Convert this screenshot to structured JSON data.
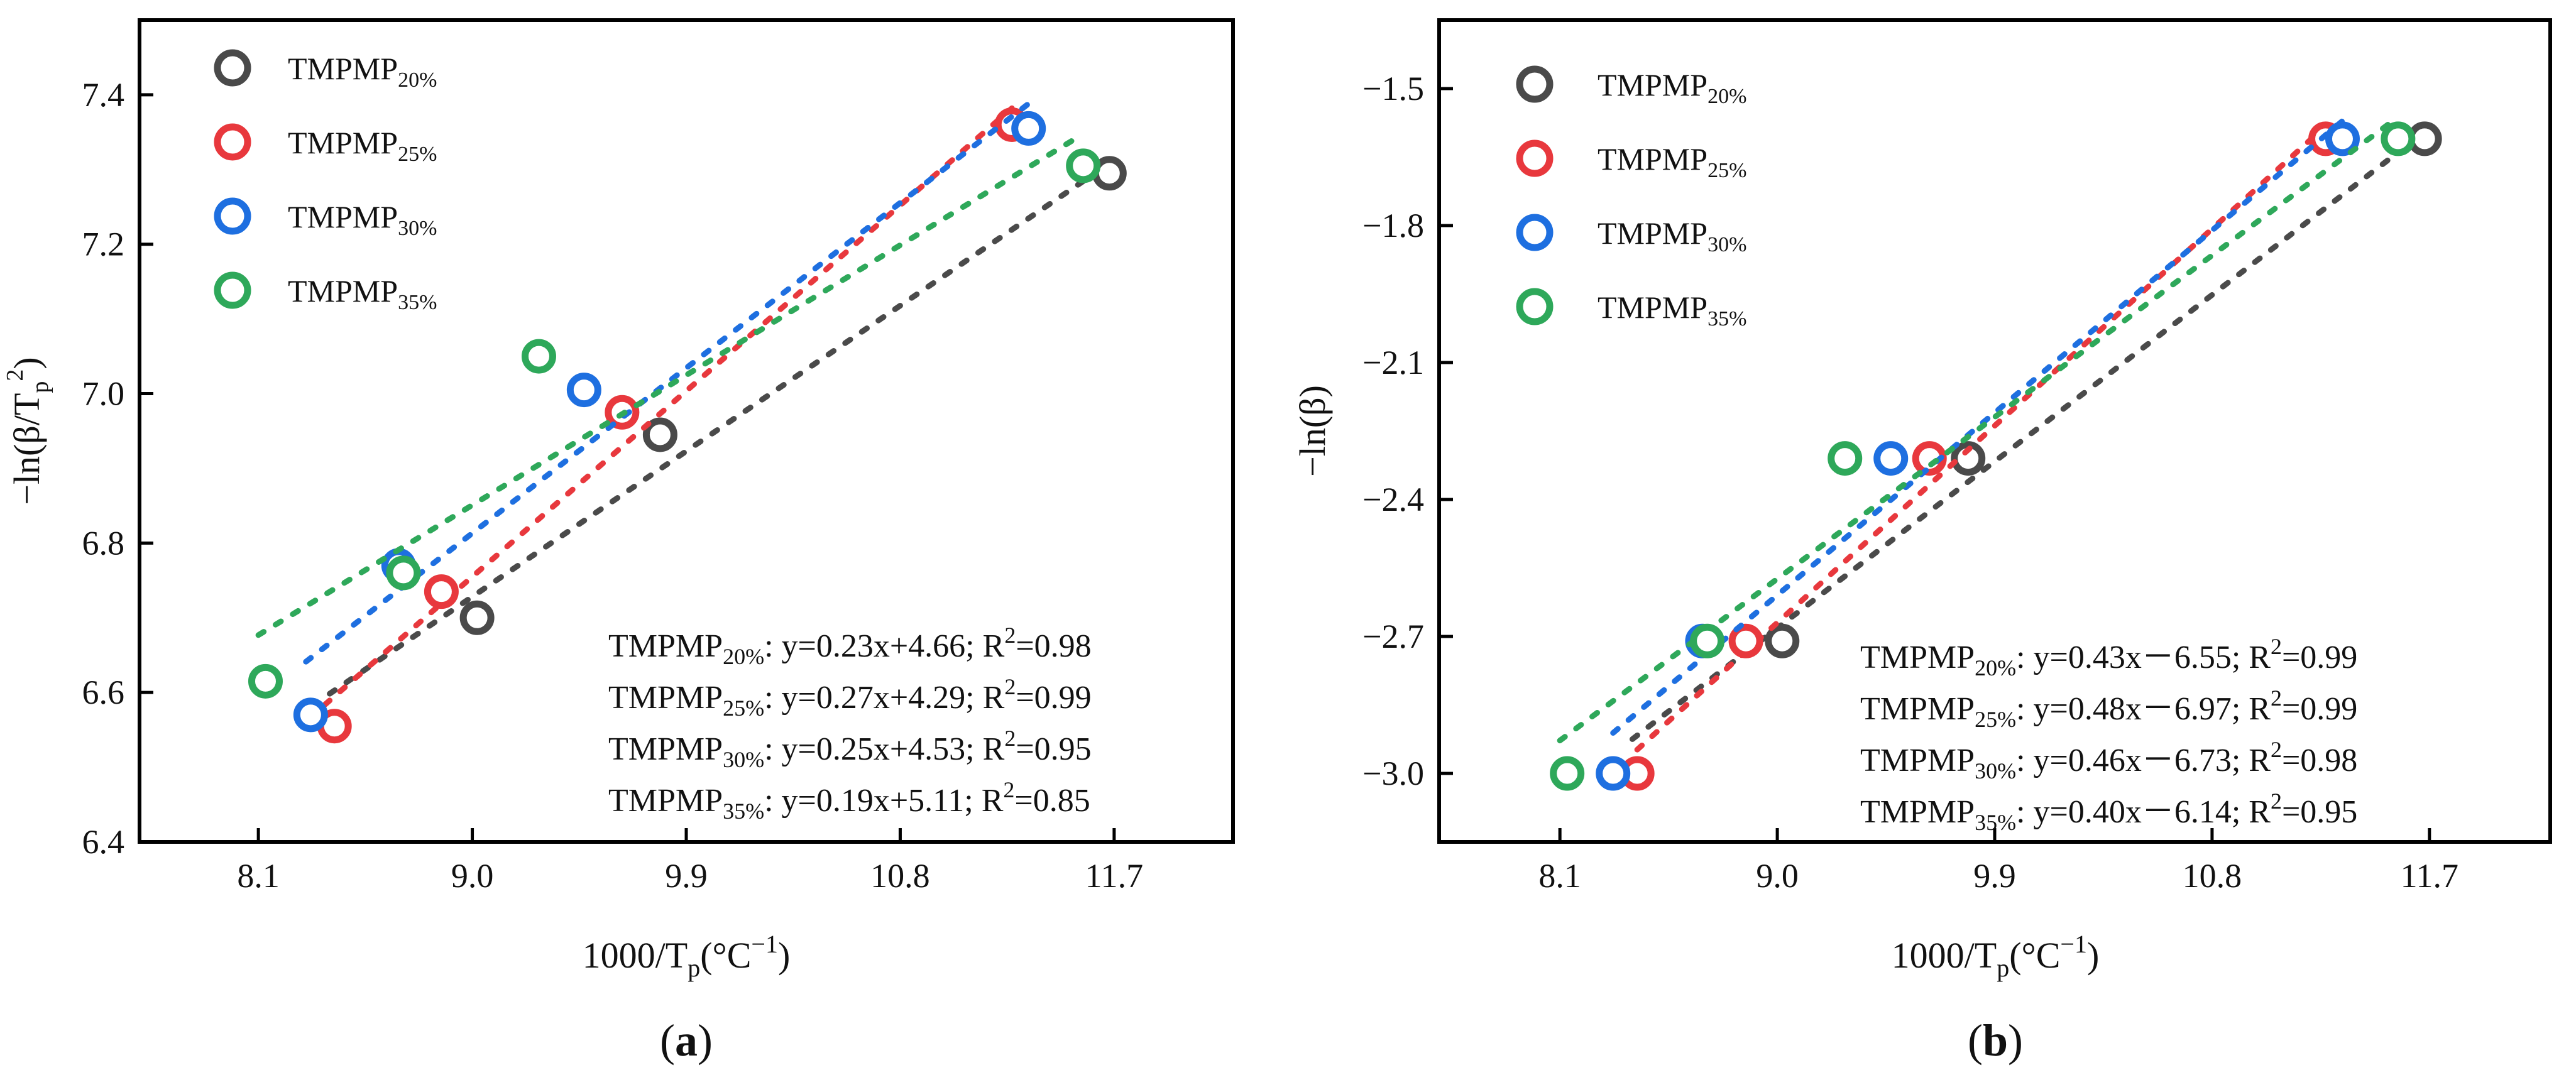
{
  "chart_data": [
    {
      "type": "scatter",
      "panel": "a",
      "panel_label": "a",
      "xlabel": "1000/Tp(°C−1)",
      "ylabel": "−ln(β/Tp2)",
      "xlim": [
        7.6,
        12.2
      ],
      "ylim": [
        6.4,
        7.5
      ],
      "x_ticks": [
        "8.1",
        "9.0",
        "9.9",
        "10.8",
        "11.7"
      ],
      "x_tick_values": [
        8.1,
        9.0,
        9.9,
        10.8,
        11.7
      ],
      "y_ticks": [
        "6.4",
        "6.6",
        "6.8",
        "7.0",
        "7.2",
        "7.4"
      ],
      "y_tick_values": [
        6.4,
        6.6,
        6.8,
        7.0,
        7.2,
        7.4
      ],
      "series": [
        {
          "name": "TMPMP20%",
          "legend_base": "TMPMP",
          "legend_sub": "20%",
          "color": "#4a4a4a",
          "x": [
            9.02,
            9.79,
            11.68
          ],
          "y": [
            6.7,
            6.945,
            7.295
          ],
          "fit_x": [
            8.4,
            11.6
          ],
          "equation": ": y=0.23x+4.66; R",
          "r2_exp": "2",
          "r2_val": "=0.98"
        },
        {
          "name": "TMPMP25%",
          "legend_base": "TMPMP",
          "legend_sub": "25%",
          "color": "#e8383d",
          "x": [
            8.42,
            8.87,
            9.63,
            11.27
          ],
          "y": [
            6.555,
            6.735,
            6.975,
            7.36
          ],
          "fit_x": [
            8.38,
            11.27
          ],
          "equation": ": y=0.27x+4.29; R",
          "r2_exp": "2",
          "r2_val": "=0.99"
        },
        {
          "name": "TMPMP30%",
          "legend_base": "TMPMP",
          "legend_sub": "30%",
          "color": "#1e6fe0",
          "x": [
            8.32,
            8.69,
            9.47,
            11.34
          ],
          "y": [
            6.57,
            6.77,
            7.005,
            7.355
          ],
          "fit_x": [
            8.3,
            11.34
          ],
          "equation": ": y=0.25x+4.53; R",
          "r2_exp": "2",
          "r2_val": "=0.95"
        },
        {
          "name": "TMPMP35%",
          "legend_base": "TMPMP",
          "legend_sub": "35%",
          "color": "#2ea85a",
          "x": [
            8.13,
            8.71,
            9.28,
            11.57
          ],
          "y": [
            6.615,
            6.76,
            7.05,
            7.305
          ],
          "fit_x": [
            8.1,
            11.57
          ],
          "equation": ": y=0.19x+5.11; R",
          "r2_exp": "2",
          "r2_val": "=0.85"
        }
      ]
    },
    {
      "type": "scatter",
      "panel": "b",
      "panel_label": "b",
      "xlabel": "1000/Tp(°C−1)",
      "ylabel": "−ln(β)",
      "xlim": [
        7.6,
        12.2
      ],
      "ylim": [
        -3.15,
        -1.35
      ],
      "x_ticks": [
        "8.1",
        "9.0",
        "9.9",
        "10.8",
        "11.7"
      ],
      "x_tick_values": [
        8.1,
        9.0,
        9.9,
        10.8,
        11.7
      ],
      "y_ticks": [
        "−1.5",
        "−1.8",
        "−2.1",
        "−2.4",
        "−2.7",
        "−3.0"
      ],
      "y_tick_values": [
        -1.5,
        -1.8,
        -2.1,
        -2.4,
        -2.7,
        -3.0
      ],
      "series": [
        {
          "name": "TMPMP20%",
          "legend_base": "TMPMP",
          "legend_sub": "20%",
          "color": "#4a4a4a",
          "x": [
            9.02,
            9.79,
            11.68
          ],
          "y": [
            -2.71,
            -2.31,
            -1.61
          ],
          "fit_x": [
            8.4,
            11.6
          ],
          "equation": ": y=0.43x－6.55; R",
          "r2_exp": "2",
          "r2_val": "=0.99"
        },
        {
          "name": "TMPMP25%",
          "legend_base": "TMPMP",
          "legend_sub": "25%",
          "color": "#e8383d",
          "x": [
            8.42,
            8.87,
            9.63,
            11.27
          ],
          "y": [
            -3.0,
            -2.71,
            -2.31,
            -1.61
          ],
          "fit_x": [
            8.42,
            11.27
          ],
          "equation": ": y=0.48x－6.97; R",
          "r2_exp": "2",
          "r2_val": "=0.99"
        },
        {
          "name": "TMPMP30%",
          "legend_base": "TMPMP",
          "legend_sub": "30%",
          "color": "#1e6fe0",
          "x": [
            8.32,
            8.69,
            9.47,
            11.34
          ],
          "y": [
            -3.0,
            -2.71,
            -2.31,
            -1.61
          ],
          "fit_x": [
            8.32,
            11.34
          ],
          "equation": ": y=0.46x－6.73; R",
          "r2_exp": "2",
          "r2_val": "=0.98"
        },
        {
          "name": "TMPMP35%",
          "legend_base": "TMPMP",
          "legend_sub": "35%",
          "color": "#2ea85a",
          "x": [
            8.13,
            8.71,
            9.28,
            11.57
          ],
          "y": [
            -3.0,
            -2.71,
            -2.31,
            -1.61
          ],
          "fit_x": [
            8.1,
            11.57
          ],
          "equation": ": y=0.40x－6.14; R",
          "r2_exp": "2",
          "r2_val": "=0.95"
        }
      ]
    }
  ]
}
